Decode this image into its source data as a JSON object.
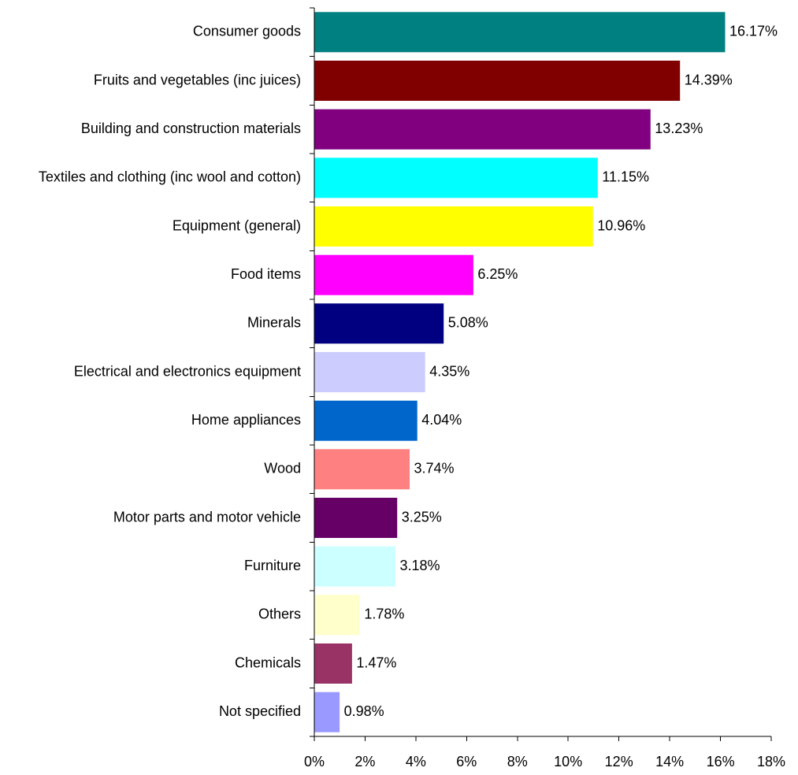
{
  "chart_data": {
    "type": "bar",
    "orientation": "horizontal",
    "title": "",
    "xlabel": "",
    "ylabel": "",
    "xlim": [
      0,
      18
    ],
    "x_ticks": [
      0,
      2,
      4,
      6,
      8,
      10,
      12,
      14,
      16,
      18
    ],
    "x_tick_labels": [
      "0%",
      "2%",
      "4%",
      "6%",
      "8%",
      "10%",
      "12%",
      "14%",
      "16%",
      "18%"
    ],
    "grid": false,
    "legend": "none",
    "categories": [
      "Consumer goods",
      "Fruits and vegetables (inc juices)",
      "Building and construction materials",
      "Textiles and clothing (inc wool and cotton)",
      "Equipment (general)",
      "Food items",
      "Minerals",
      "Electrical and electronics equipment",
      "Home appliances",
      "Wood",
      "Motor parts and motor vehicle",
      "Furniture",
      "Others",
      "Chemicals",
      "Not specified"
    ],
    "values": [
      16.17,
      14.39,
      13.23,
      11.15,
      10.96,
      6.25,
      5.08,
      4.35,
      4.04,
      3.74,
      3.25,
      3.18,
      1.78,
      1.47,
      0.98
    ],
    "value_labels": [
      "16.17%",
      "14.39%",
      "13.23%",
      "11.15%",
      "10.96%",
      "6.25%",
      "5.08%",
      "4.35%",
      "4.04%",
      "3.74%",
      "3.25%",
      "3.18%",
      "1.78%",
      "1.47%",
      "0.98%"
    ],
    "colors": [
      "#008080",
      "#800000",
      "#800080",
      "#00FFFF",
      "#FFFF00",
      "#FF00FF",
      "#000080",
      "#CCCCFF",
      "#0066CC",
      "#FF8080",
      "#660066",
      "#CCFFFF",
      "#FFFFCC",
      "#993366",
      "#9999FF"
    ]
  }
}
